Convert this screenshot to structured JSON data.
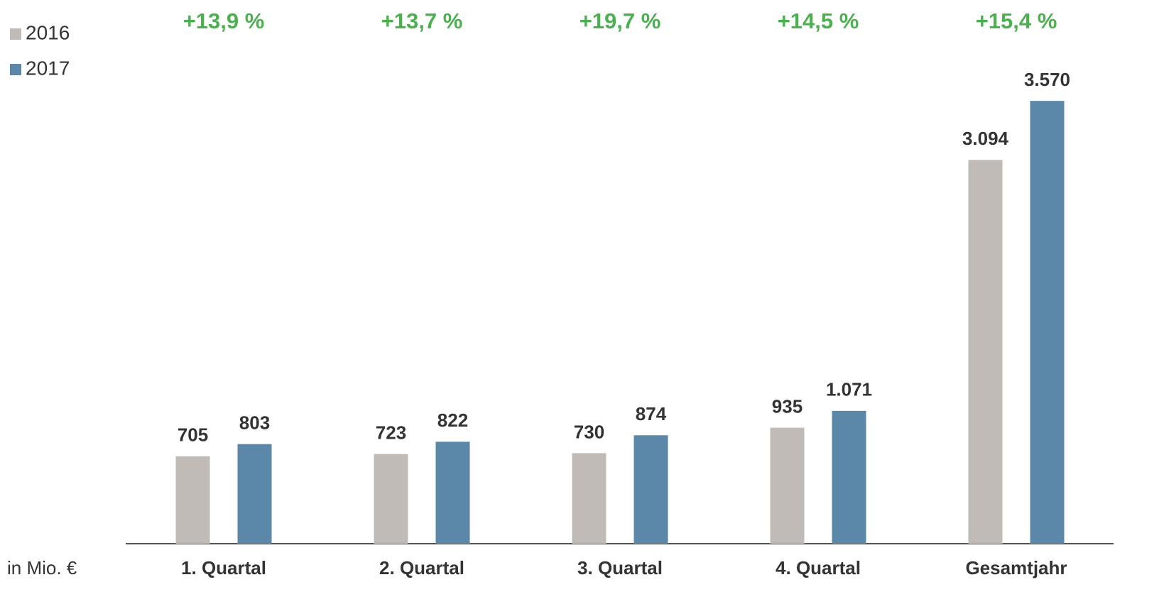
{
  "chart_data": {
    "type": "bar",
    "categories": [
      "1. Quartal",
      "2. Quartal",
      "3. Quartal",
      "4. Quartal",
      "Gesamtjahr"
    ],
    "series": [
      {
        "name": "2016",
        "color": "#c0bbb6",
        "values": [
          705,
          723,
          730,
          935,
          3094
        ],
        "value_labels": [
          "705",
          "723",
          "730",
          "935",
          "3.094"
        ]
      },
      {
        "name": "2017",
        "color": "#5b87a8",
        "values": [
          803,
          822,
          874,
          1071,
          3570
        ],
        "value_labels": [
          "803",
          "822",
          "874",
          "1.071",
          "3.570"
        ]
      }
    ],
    "annotations": [
      "+13,9 %",
      "+13,7 %",
      "+19,7 %",
      "+14,5 %",
      "+15,4 %"
    ],
    "annotation_color": "#4caf50",
    "ylabel": "in Mio. €",
    "ylim": [
      0,
      4000
    ],
    "legend": "top-left"
  }
}
